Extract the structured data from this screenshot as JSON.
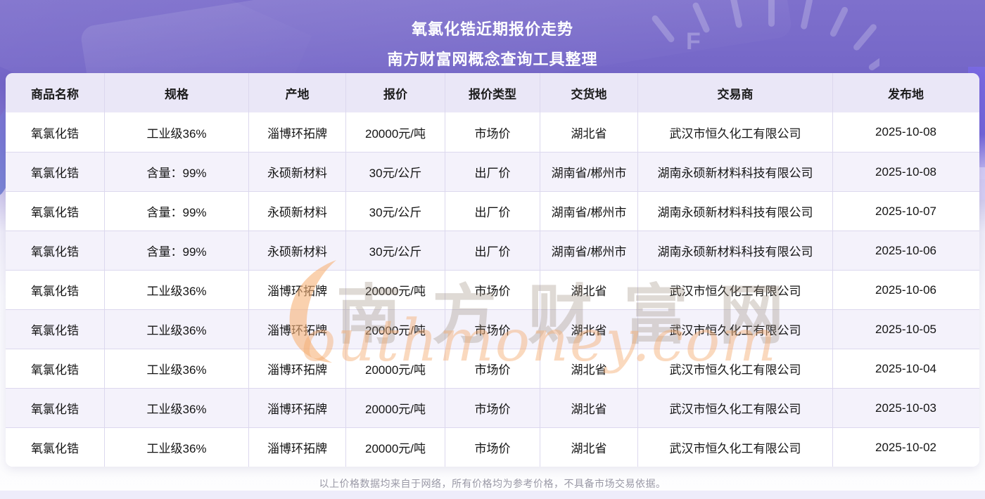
{
  "page": {
    "title_line1": "氧氯化锆近期报价走势",
    "title_line2": "南方财富网概念查询工具整理",
    "disclaimer": "以上价格数据均来自于网络，所有价格均为参考价格，不具备市场交易依据。",
    "gauge_letter": "F"
  },
  "watermark": {
    "brand_cn": "南方财富网",
    "brand_en": "outhmoney.com",
    "accent_color": "#f5b878"
  },
  "colors": {
    "header_bg": "#eae7f7",
    "row_alt_bg": "#f4f2fb",
    "row_bg": "#ffffff",
    "grid_line": "#dcd8ee",
    "top_background": "#7365c7",
    "title_text": "#ffffff"
  },
  "table": {
    "columns": [
      "商品名称",
      "规格",
      "产地",
      "报价",
      "报价类型",
      "交货地",
      "交易商",
      "发布地"
    ],
    "rows": [
      [
        "氧氯化锆",
        "工业级36%",
        "淄博环拓牌",
        "20000元/吨",
        "市场价",
        "湖北省",
        "武汉市恒久化工有限公司",
        "2025-10-08"
      ],
      [
        "氧氯化锆",
        "含量：99%",
        "永硕新材料",
        "30元/公斤",
        "出厂价",
        "湖南省/郴州市",
        "湖南永硕新材料科技有限公司",
        "2025-10-08"
      ],
      [
        "氧氯化锆",
        "含量：99%",
        "永硕新材料",
        "30元/公斤",
        "出厂价",
        "湖南省/郴州市",
        "湖南永硕新材料科技有限公司",
        "2025-10-07"
      ],
      [
        "氧氯化锆",
        "含量：99%",
        "永硕新材料",
        "30元/公斤",
        "出厂价",
        "湖南省/郴州市",
        "湖南永硕新材料科技有限公司",
        "2025-10-06"
      ],
      [
        "氧氯化锆",
        "工业级36%",
        "淄博环拓牌",
        "20000元/吨",
        "市场价",
        "湖北省",
        "武汉市恒久化工有限公司",
        "2025-10-06"
      ],
      [
        "氧氯化锆",
        "工业级36%",
        "淄博环拓牌",
        "20000元/吨",
        "市场价",
        "湖北省",
        "武汉市恒久化工有限公司",
        "2025-10-05"
      ],
      [
        "氧氯化锆",
        "工业级36%",
        "淄博环拓牌",
        "20000元/吨",
        "市场价",
        "湖北省",
        "武汉市恒久化工有限公司",
        "2025-10-04"
      ],
      [
        "氧氯化锆",
        "工业级36%",
        "淄博环拓牌",
        "20000元/吨",
        "市场价",
        "湖北省",
        "武汉市恒久化工有限公司",
        "2025-10-03"
      ],
      [
        "氧氯化锆",
        "工业级36%",
        "淄博环拓牌",
        "20000元/吨",
        "市场价",
        "湖北省",
        "武汉市恒久化工有限公司",
        "2025-10-02"
      ]
    ]
  }
}
